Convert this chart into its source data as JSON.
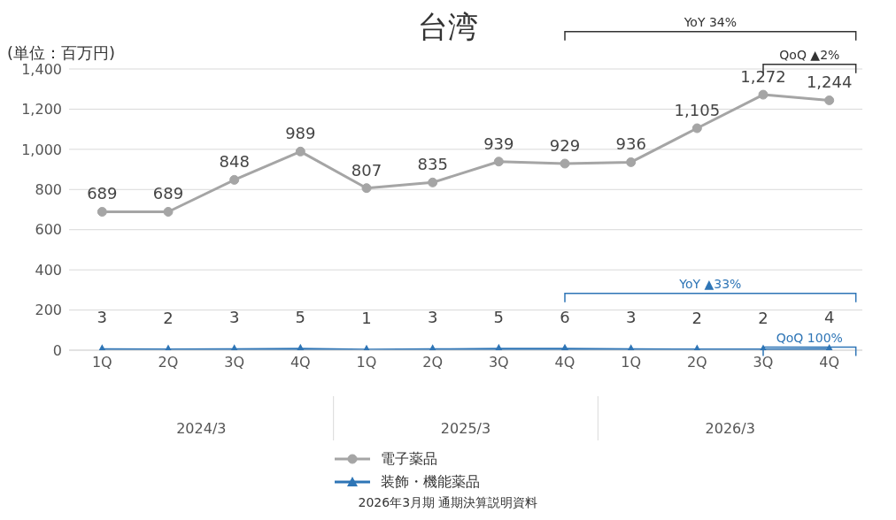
{
  "chart_data": {
    "type": "line",
    "title": "台湾",
    "ylabel": "(単位：百万円)",
    "categories": [
      "1Q",
      "2Q",
      "3Q",
      "4Q",
      "1Q",
      "2Q",
      "3Q",
      "4Q",
      "1Q",
      "2Q",
      "3Q",
      "4Q"
    ],
    "series": [
      {
        "name": "電子薬品",
        "color": "#a5a5a5",
        "marker": "circle",
        "values": [
          689,
          689,
          848,
          989,
          807,
          835,
          939,
          929,
          936,
          1105,
          1272,
          1244
        ],
        "value_labels": [
          "689",
          "689",
          "848",
          "989",
          "807",
          "835",
          "939",
          "929",
          "936",
          "1,105",
          "1,272",
          "1,244"
        ]
      },
      {
        "name": "装飾・機能薬品",
        "color": "#2e75b6",
        "marker": "triangle",
        "values": [
          3,
          2,
          3,
          5,
          1,
          3,
          5,
          6,
          3,
          2,
          2,
          4
        ],
        "value_labels": [
          "3",
          "2",
          "3",
          "5",
          "1",
          "3",
          "5",
          "6",
          "3",
          "2",
          "2",
          "4"
        ]
      }
    ],
    "ylim": [
      0,
      1400
    ],
    "yticks": [
      0,
      200,
      400,
      600,
      800,
      {
        "value": 1000,
        "label": "1,000"
      },
      {
        "value": 1200,
        "label": "1,200"
      },
      {
        "value": 1400,
        "label": "1,400"
      }
    ],
    "grid": "y",
    "legend": "bottom",
    "annotations": [
      "2024/3",
      "2025/3",
      "2026/3",
      "YoY 34%",
      "QoQ ▲2%",
      "YoY ▲33%",
      "QoQ 100%",
      "2026年3月期 通期決算説明資料"
    ]
  }
}
